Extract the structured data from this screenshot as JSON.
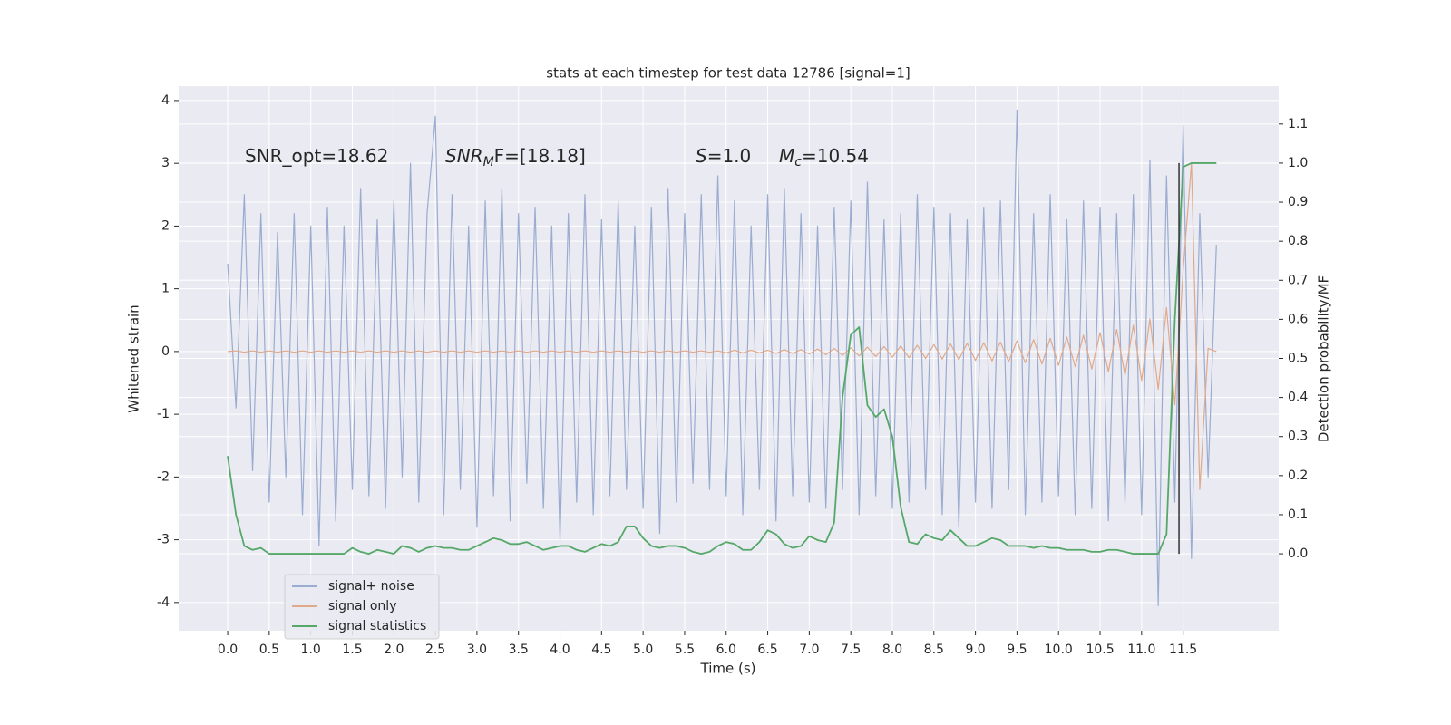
{
  "chart_data": {
    "type": "line",
    "title": "stats at each timestep for test data 12786 [signal=1]",
    "x_label": "Time (s)",
    "y_label": "Whitened strain",
    "y2_label": "Detection probability/MF",
    "annotations": [
      {
        "main": "SNR_opt=18.62"
      },
      {
        "main": "SNR",
        "sub": "M",
        "rest": "F=[18.18]"
      },
      {
        "main": "S",
        "rest": "=1.0"
      },
      {
        "main": "M",
        "sub": "c",
        "rest": "=10.54"
      }
    ],
    "x": [
      0.0,
      0.1,
      0.2,
      0.3,
      0.4,
      0.5,
      0.6,
      0.7,
      0.8,
      0.9,
      1.0,
      1.1,
      1.2,
      1.3,
      1.4,
      1.5,
      1.6,
      1.7,
      1.8,
      1.9,
      2.0,
      2.1,
      2.2,
      2.3,
      2.4,
      2.5,
      2.6,
      2.7,
      2.8,
      2.9,
      3.0,
      3.1,
      3.2,
      3.3,
      3.4,
      3.5,
      3.6,
      3.7,
      3.8,
      3.9,
      4.0,
      4.1,
      4.2,
      4.3,
      4.4,
      4.5,
      4.6,
      4.7,
      4.8,
      4.9,
      5.0,
      5.1,
      5.2,
      5.3,
      5.4,
      5.5,
      5.6,
      5.7,
      5.8,
      5.9,
      6.0,
      6.1,
      6.2,
      6.3,
      6.4,
      6.5,
      6.6,
      6.7,
      6.8,
      6.9,
      7.0,
      7.1,
      7.2,
      7.3,
      7.4,
      7.5,
      7.6,
      7.7,
      7.8,
      7.9,
      8.0,
      8.1,
      8.2,
      8.3,
      8.4,
      8.5,
      8.6,
      8.7,
      8.8,
      8.9,
      9.0,
      9.1,
      9.2,
      9.3,
      9.4,
      9.5,
      9.6,
      9.7,
      9.8,
      9.9,
      10.0,
      10.1,
      10.2,
      10.3,
      10.4,
      10.5,
      10.6,
      10.7,
      10.8,
      10.9,
      11.0,
      11.1,
      11.2,
      11.3,
      11.4,
      11.5,
      11.6,
      11.7,
      11.8,
      11.9
    ],
    "series": [
      {
        "name": "signal+ noise",
        "color": "#9aacd0",
        "axis": "y",
        "values": [
          1.4,
          -0.9,
          2.5,
          -1.9,
          2.2,
          -2.4,
          1.9,
          -2.0,
          2.2,
          -2.6,
          2.0,
          -3.1,
          2.3,
          -2.7,
          2.0,
          -2.2,
          2.6,
          -2.3,
          2.1,
          -2.5,
          2.4,
          -2.0,
          3.0,
          -2.4,
          2.2,
          3.75,
          -2.6,
          2.5,
          -2.2,
          2.0,
          -2.8,
          2.4,
          -2.3,
          2.6,
          -2.7,
          2.2,
          -2.1,
          2.3,
          -2.5,
          2.0,
          -3.0,
          2.2,
          -2.4,
          2.5,
          -2.6,
          2.1,
          -2.3,
          2.4,
          -2.2,
          2.0,
          -2.5,
          2.3,
          -2.9,
          2.6,
          -2.4,
          2.2,
          -2.1,
          2.5,
          -2.2,
          2.8,
          -2.3,
          2.4,
          -2.6,
          2.0,
          -2.2,
          2.5,
          -2.7,
          2.6,
          -2.3,
          2.2,
          -2.4,
          2.0,
          -2.5,
          2.3,
          -2.2,
          2.4,
          -2.6,
          2.7,
          -2.3,
          2.1,
          -2.5,
          2.2,
          -2.4,
          2.5,
          -2.2,
          2.3,
          -2.6,
          2.2,
          -2.8,
          2.1,
          -2.4,
          2.3,
          -2.5,
          2.4,
          -2.2,
          3.85,
          -2.6,
          2.2,
          -2.4,
          2.5,
          -2.3,
          2.1,
          -2.6,
          2.4,
          -2.5,
          2.3,
          -2.7,
          2.2,
          -2.4,
          2.5,
          -2.6,
          3.05,
          -4.05,
          2.8,
          -2.4,
          3.6,
          -3.3,
          2.2,
          -2.0,
          1.7
        ]
      },
      {
        "name": "signal only",
        "color": "#e0a98a",
        "axis": "y",
        "values": [
          0.0,
          0.01,
          -0.01,
          0.01,
          -0.01,
          0.01,
          -0.01,
          0.01,
          -0.01,
          0.01,
          -0.01,
          0.01,
          -0.01,
          0.01,
          -0.01,
          0.01,
          -0.01,
          0.01,
          -0.01,
          0.01,
          -0.01,
          0.01,
          -0.01,
          0.01,
          -0.01,
          0.01,
          -0.01,
          0.01,
          -0.01,
          0.01,
          -0.01,
          0.01,
          -0.01,
          0.01,
          -0.01,
          0.01,
          -0.01,
          0.01,
          -0.01,
          0.01,
          -0.01,
          0.01,
          -0.01,
          0.01,
          -0.01,
          0.01,
          -0.01,
          0.01,
          -0.01,
          0.01,
          -0.01,
          0.01,
          -0.01,
          0.01,
          -0.01,
          0.01,
          -0.01,
          0.01,
          -0.01,
          0.01,
          -0.02,
          0.02,
          -0.02,
          0.02,
          -0.02,
          0.02,
          -0.03,
          0.03,
          -0.03,
          0.03,
          -0.04,
          0.04,
          -0.05,
          0.05,
          -0.06,
          0.06,
          -0.07,
          0.07,
          -0.08,
          0.08,
          -0.09,
          0.09,
          -0.1,
          0.1,
          -0.11,
          0.11,
          -0.12,
          0.12,
          -0.13,
          0.13,
          -0.14,
          0.14,
          -0.15,
          0.15,
          -0.16,
          0.17,
          -0.18,
          0.19,
          -0.2,
          0.21,
          -0.22,
          0.23,
          -0.24,
          0.26,
          -0.28,
          0.3,
          -0.32,
          0.35,
          -0.38,
          0.42,
          -0.46,
          0.52,
          -0.6,
          0.7,
          -0.85,
          1.3,
          3.0,
          -2.2,
          0.05,
          0.0
        ]
      },
      {
        "name": "signal statistics",
        "color": "#55a868",
        "axis": "y2",
        "values": [
          0.25,
          0.1,
          0.02,
          0.01,
          0.015,
          0.0,
          0.0,
          0.0,
          0.0,
          0.0,
          0.0,
          0.0,
          0.0,
          0.0,
          0.0,
          0.015,
          0.005,
          0.0,
          0.01,
          0.005,
          0.0,
          0.02,
          0.015,
          0.005,
          0.015,
          0.02,
          0.015,
          0.015,
          0.01,
          0.01,
          0.02,
          0.03,
          0.04,
          0.035,
          0.025,
          0.025,
          0.03,
          0.02,
          0.01,
          0.015,
          0.02,
          0.02,
          0.01,
          0.005,
          0.015,
          0.025,
          0.02,
          0.03,
          0.07,
          0.07,
          0.04,
          0.02,
          0.015,
          0.02,
          0.02,
          0.015,
          0.005,
          0.0,
          0.005,
          0.02,
          0.03,
          0.025,
          0.01,
          0.01,
          0.03,
          0.06,
          0.05,
          0.025,
          0.015,
          0.02,
          0.045,
          0.035,
          0.03,
          0.08,
          0.4,
          0.56,
          0.58,
          0.38,
          0.35,
          0.37,
          0.3,
          0.12,
          0.03,
          0.025,
          0.05,
          0.04,
          0.035,
          0.06,
          0.04,
          0.02,
          0.02,
          0.03,
          0.04,
          0.035,
          0.02,
          0.02,
          0.02,
          0.015,
          0.02,
          0.015,
          0.015,
          0.01,
          0.01,
          0.01,
          0.005,
          0.005,
          0.01,
          0.01,
          0.005,
          0.0,
          0.0,
          0.0,
          0.0,
          0.05,
          0.6,
          0.99,
          1.0,
          1.0,
          1.0,
          1.0
        ]
      }
    ],
    "vlines": [
      {
        "x": 11.45,
        "ymin": 0.0,
        "ymax": 1.0,
        "axis": "y2",
        "color": "#333333"
      }
    ],
    "xlim": [
      -0.59,
      12.65
    ],
    "ylim": [
      -4.45,
      4.23
    ],
    "y2lim": [
      -0.197,
      1.197
    ],
    "xticks": [
      {
        "value": 0,
        "label": "0.0"
      },
      0.5,
      {
        "value": 1,
        "label": "1.0"
      },
      1.5,
      {
        "value": 2,
        "label": "2.0"
      },
      2.5,
      {
        "value": 3,
        "label": "3.0"
      },
      3.5,
      {
        "value": 4,
        "label": "4.0"
      },
      4.5,
      {
        "value": 5,
        "label": "5.0"
      },
      5.5,
      {
        "value": 6,
        "label": "6.0"
      },
      6.5,
      {
        "value": 7,
        "label": "7.0"
      },
      7.5,
      {
        "value": 8,
        "label": "8.0"
      },
      8.5,
      {
        "value": 9,
        "label": "9.0"
      },
      9.5,
      {
        "value": 10,
        "label": "10.0"
      },
      10.5,
      {
        "value": 11,
        "label": "11.0"
      },
      11.5
    ],
    "yticks": [
      -4,
      -3,
      -2,
      -1,
      0,
      1,
      2,
      3,
      4
    ],
    "y2ticks": [
      {
        "value": 0,
        "label": "0.0"
      },
      0.1,
      0.2,
      0.3,
      0.4,
      0.5,
      0.6,
      0.7,
      0.8,
      0.9,
      {
        "value": 1,
        "label": "1.0"
      },
      1.1
    ],
    "grid": true,
    "legend": "lower left"
  }
}
